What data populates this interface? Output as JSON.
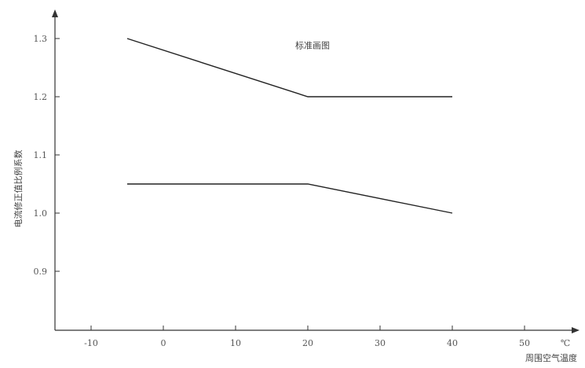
{
  "chart_data": {
    "type": "line",
    "title": "",
    "xlabel": "周围空气温度",
    "ylabel": "电流修正值比例系数",
    "x_unit": "℃",
    "xlim": [
      -15,
      55
    ],
    "ylim": [
      0.8,
      1.32
    ],
    "x_ticks": [
      -10,
      0,
      10,
      20,
      30,
      40,
      50
    ],
    "x_tick_labels": [
      "-10",
      "0",
      "10",
      "20",
      "30",
      "40",
      "50"
    ],
    "y_ticks": [
      0.9,
      1.0,
      1.1,
      1.2,
      1.3
    ],
    "y_tick_labels": [
      "0.9",
      "1.0",
      "1.1",
      "1.2",
      "1.3"
    ],
    "grid": false,
    "annotations": [
      {
        "text": "标准画图",
        "x": 25,
        "y": 1.29
      }
    ],
    "series": [
      {
        "x": [
          -5,
          20,
          40
        ],
        "y": [
          1.3,
          1.2,
          1.2
        ]
      },
      {
        "x": [
          -5,
          20,
          40
        ],
        "y": [
          1.05,
          1.05,
          1.0
        ]
      }
    ]
  }
}
